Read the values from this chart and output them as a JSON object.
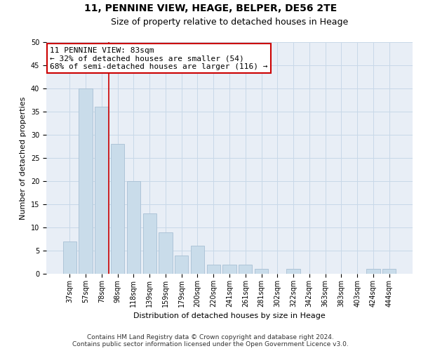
{
  "title": "11, PENNINE VIEW, HEAGE, BELPER, DE56 2TE",
  "subtitle": "Size of property relative to detached houses in Heage",
  "xlabel": "Distribution of detached houses by size in Heage",
  "ylabel": "Number of detached properties",
  "categories": [
    "37sqm",
    "57sqm",
    "78sqm",
    "98sqm",
    "118sqm",
    "139sqm",
    "159sqm",
    "179sqm",
    "200sqm",
    "220sqm",
    "241sqm",
    "261sqm",
    "281sqm",
    "302sqm",
    "322sqm",
    "342sqm",
    "363sqm",
    "383sqm",
    "403sqm",
    "424sqm",
    "444sqm"
  ],
  "values": [
    7,
    40,
    36,
    28,
    20,
    13,
    9,
    4,
    6,
    2,
    2,
    2,
    1,
    0,
    1,
    0,
    0,
    0,
    0,
    1,
    1
  ],
  "bar_color": "#c9dcea",
  "bar_edge_color": "#a8c0d4",
  "grid_color": "#c8d8e8",
  "background_color": "#e8eef6",
  "property_line_color": "#cc0000",
  "property_line_index": 2,
  "annotation_text": "11 PENNINE VIEW: 83sqm\n← 32% of detached houses are smaller (54)\n68% of semi-detached houses are larger (116) →",
  "annotation_box_facecolor": "#ffffff",
  "annotation_box_edgecolor": "#cc0000",
  "ylim": [
    0,
    50
  ],
  "yticks": [
    0,
    5,
    10,
    15,
    20,
    25,
    30,
    35,
    40,
    45,
    50
  ],
  "footer_line1": "Contains HM Land Registry data © Crown copyright and database right 2024.",
  "footer_line2": "Contains public sector information licensed under the Open Government Licence v3.0.",
  "title_fontsize": 10,
  "subtitle_fontsize": 9,
  "axis_label_fontsize": 8,
  "tick_fontsize": 7,
  "annotation_fontsize": 8,
  "footer_fontsize": 6.5
}
